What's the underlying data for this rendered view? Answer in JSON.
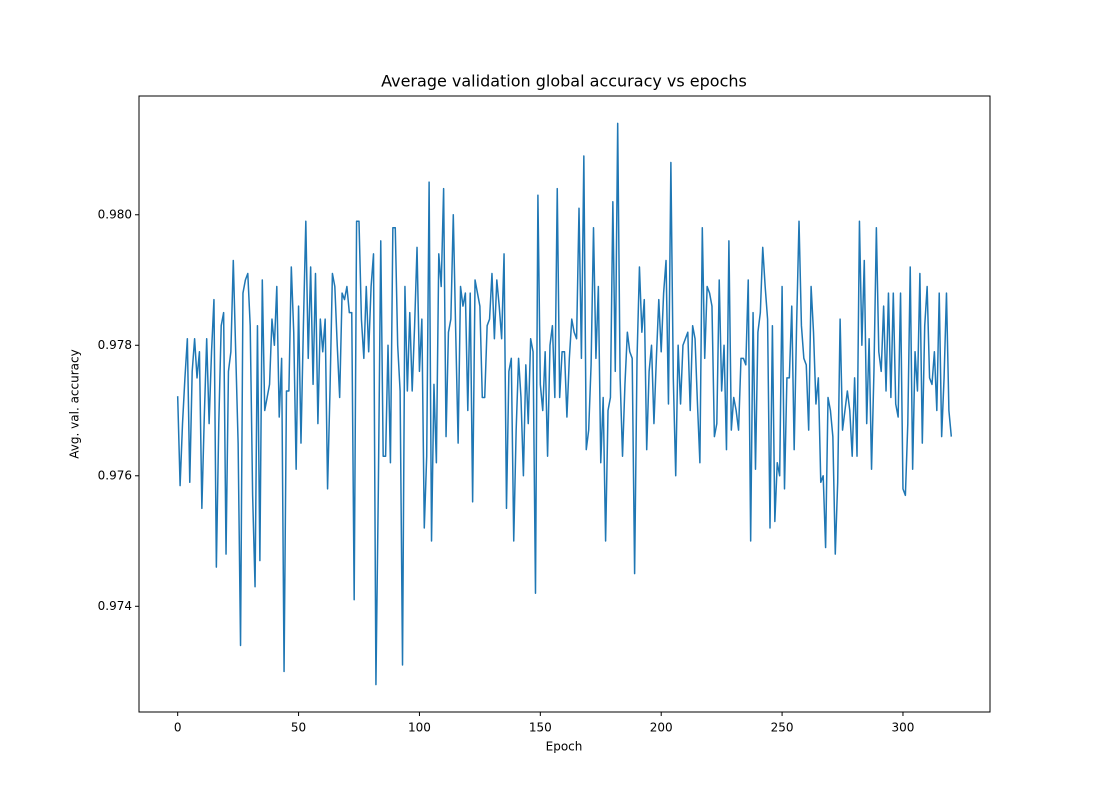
{
  "chart_data": {
    "type": "line",
    "title": "Average validation global accuracy vs epochs",
    "xlabel": "Epoch",
    "ylabel": "Avg. val. accuracy",
    "xlim": [
      -16,
      336
    ],
    "ylim": [
      0.97238,
      0.98182
    ],
    "xticks": [
      0,
      50,
      100,
      150,
      200,
      250,
      300
    ],
    "yticks": [
      0.974,
      0.976,
      0.978,
      {
        "value": 0.98,
        "label": "0.980"
      }
    ],
    "grid": false,
    "x": [
      0,
      1,
      2,
      3,
      4,
      5,
      6,
      7,
      8,
      9,
      10,
      11,
      12,
      13,
      14,
      15,
      16,
      17,
      18,
      19,
      20,
      21,
      22,
      23,
      24,
      25,
      26,
      27,
      28,
      29,
      30,
      31,
      32,
      33,
      34,
      35,
      36,
      37,
      38,
      39,
      40,
      41,
      42,
      43,
      44,
      45,
      46,
      47,
      48,
      49,
      50,
      51,
      52,
      53,
      54,
      55,
      56,
      57,
      58,
      59,
      60,
      61,
      62,
      63,
      64,
      65,
      66,
      67,
      68,
      69,
      70,
      71,
      72,
      73,
      74,
      75,
      76,
      77,
      78,
      79,
      80,
      81,
      82,
      83,
      84,
      85,
      86,
      87,
      88,
      89,
      90,
      91,
      92,
      93,
      94,
      95,
      96,
      97,
      98,
      99,
      100,
      101,
      102,
      103,
      104,
      105,
      106,
      107,
      108,
      109,
      110,
      111,
      112,
      113,
      114,
      115,
      116,
      117,
      118,
      119,
      120,
      121,
      122,
      123,
      124,
      125,
      126,
      127,
      128,
      129,
      130,
      131,
      132,
      133,
      134,
      135,
      136,
      137,
      138,
      139,
      140,
      141,
      142,
      143,
      144,
      145,
      146,
      147,
      148,
      149,
      150,
      151,
      152,
      153,
      154,
      155,
      156,
      157,
      158,
      159,
      160,
      161,
      162,
      163,
      164,
      165,
      166,
      167,
      168,
      169,
      170,
      171,
      172,
      173,
      174,
      175,
      176,
      177,
      178,
      179,
      180,
      181,
      182,
      183,
      184,
      185,
      186,
      187,
      188,
      189,
      190,
      191,
      192,
      193,
      194,
      195,
      196,
      197,
      198,
      199,
      200,
      201,
      202,
      203,
      204,
      205,
      206,
      207,
      208,
      209,
      210,
      211,
      212,
      213,
      214,
      215,
      216,
      217,
      218,
      219,
      220,
      221,
      222,
      223,
      224,
      225,
      226,
      227,
      228,
      229,
      230,
      231,
      232,
      233,
      234,
      235,
      236,
      237,
      238,
      239,
      240,
      241,
      242,
      243,
      244,
      245,
      246,
      247,
      248,
      249,
      250,
      251,
      252,
      253,
      254,
      255,
      256,
      257,
      258,
      259,
      260,
      261,
      262,
      263,
      264,
      265,
      266,
      267,
      268,
      269,
      270,
      271,
      272,
      273,
      274,
      275,
      276,
      277,
      278,
      279,
      280,
      281,
      282,
      283,
      284,
      285,
      286,
      287,
      288,
      289,
      290,
      291,
      292,
      293,
      294,
      295,
      296,
      297,
      298,
      299,
      300,
      301,
      302,
      303,
      304,
      305,
      306,
      307,
      308,
      309,
      310,
      311,
      312,
      313,
      314,
      315,
      316,
      317,
      318,
      319,
      320
    ],
    "series": [
      {
        "color": "#1f77b4",
        "values": [
          0.97722,
          0.97585,
          0.9768,
          0.9775,
          0.9781,
          0.9759,
          0.9776,
          0.9781,
          0.9775,
          0.9779,
          0.9755,
          0.9769,
          0.9781,
          0.9768,
          0.9779,
          0.9787,
          0.9746,
          0.9768,
          0.9783,
          0.9785,
          0.9748,
          0.9776,
          0.9779,
          0.9793,
          0.9779,
          0.9765,
          0.9734,
          0.9788,
          0.979,
          0.9791,
          0.9783,
          0.9757,
          0.9743,
          0.9783,
          0.9747,
          0.979,
          0.977,
          0.9772,
          0.9774,
          0.9784,
          0.978,
          0.9789,
          0.9769,
          0.9778,
          0.973,
          0.9773,
          0.9773,
          0.9792,
          0.9782,
          0.9761,
          0.9786,
          0.9765,
          0.9783,
          0.9799,
          0.9778,
          0.9792,
          0.9774,
          0.9791,
          0.9768,
          0.9784,
          0.9779,
          0.9784,
          0.9758,
          0.9773,
          0.9791,
          0.9789,
          0.978,
          0.9772,
          0.9788,
          0.9787,
          0.9789,
          0.9785,
          0.9785,
          0.9741,
          0.9799,
          0.9799,
          0.9784,
          0.9778,
          0.9789,
          0.9779,
          0.9789,
          0.9794,
          0.9728,
          0.9758,
          0.9796,
          0.9763,
          0.9763,
          0.978,
          0.9762,
          0.9798,
          0.9798,
          0.978,
          0.9773,
          0.9731,
          0.9789,
          0.9773,
          0.9785,
          0.9773,
          0.9783,
          0.9795,
          0.9776,
          0.9784,
          0.9752,
          0.9763,
          0.9805,
          0.975,
          0.9774,
          0.9762,
          0.9794,
          0.9789,
          0.9804,
          0.9766,
          0.9782,
          0.9784,
          0.98,
          0.9782,
          0.9765,
          0.9789,
          0.9786,
          0.9788,
          0.977,
          0.9788,
          0.9756,
          0.979,
          0.9788,
          0.9786,
          0.9772,
          0.9772,
          0.9783,
          0.9784,
          0.9791,
          0.9781,
          0.979,
          0.9786,
          0.9781,
          0.9794,
          0.9755,
          0.9776,
          0.9778,
          0.975,
          0.9767,
          0.9778,
          0.9772,
          0.976,
          0.9777,
          0.9768,
          0.9781,
          0.9779,
          0.9742,
          0.9803,
          0.9774,
          0.977,
          0.9779,
          0.9763,
          0.978,
          0.9783,
          0.9772,
          0.9804,
          0.9772,
          0.9779,
          0.9779,
          0.9769,
          0.9778,
          0.9784,
          0.9782,
          0.9781,
          0.9801,
          0.9778,
          0.9809,
          0.9764,
          0.9767,
          0.9777,
          0.9798,
          0.9778,
          0.9789,
          0.9762,
          0.9772,
          0.975,
          0.977,
          0.9772,
          0.9802,
          0.9776,
          0.9814,
          0.9775,
          0.9763,
          0.9774,
          0.9782,
          0.9779,
          0.9778,
          0.9745,
          0.9778,
          0.9792,
          0.9782,
          0.9787,
          0.9764,
          0.9776,
          0.978,
          0.9768,
          0.9778,
          0.9787,
          0.9779,
          0.9788,
          0.9793,
          0.9771,
          0.9808,
          0.9775,
          0.976,
          0.978,
          0.9771,
          0.978,
          0.9781,
          0.9782,
          0.977,
          0.9783,
          0.9781,
          0.9771,
          0.9762,
          0.9798,
          0.9778,
          0.9789,
          0.9788,
          0.9786,
          0.9766,
          0.9768,
          0.979,
          0.9773,
          0.978,
          0.9764,
          0.9796,
          0.9767,
          0.9772,
          0.977,
          0.9767,
          0.9778,
          0.9778,
          0.9777,
          0.979,
          0.975,
          0.9785,
          0.9761,
          0.9782,
          0.9785,
          0.9795,
          0.9789,
          0.9784,
          0.9752,
          0.9783,
          0.9753,
          0.9762,
          0.976,
          0.9789,
          0.9758,
          0.9775,
          0.9775,
          0.9786,
          0.9764,
          0.9783,
          0.9799,
          0.9783,
          0.9778,
          0.9777,
          0.9767,
          0.9789,
          0.9782,
          0.9771,
          0.9775,
          0.9759,
          0.976,
          0.9749,
          0.9772,
          0.977,
          0.9766,
          0.9748,
          0.9759,
          0.9784,
          0.9767,
          0.977,
          0.9773,
          0.977,
          0.9763,
          0.9775,
          0.9763,
          0.9799,
          0.978,
          0.9793,
          0.9768,
          0.9781,
          0.9761,
          0.9776,
          0.9798,
          0.9779,
          0.9776,
          0.9786,
          0.9773,
          0.9788,
          0.9772,
          0.9788,
          0.9771,
          0.9769,
          0.9788,
          0.9758,
          0.9757,
          0.9768,
          0.9792,
          0.9761,
          0.9779,
          0.9773,
          0.9791,
          0.9765,
          0.9783,
          0.9789,
          0.9775,
          0.9774,
          0.9779,
          0.977,
          0.9788,
          0.9766,
          0.9775,
          0.9788,
          0.977,
          0.9766
        ]
      }
    ]
  }
}
